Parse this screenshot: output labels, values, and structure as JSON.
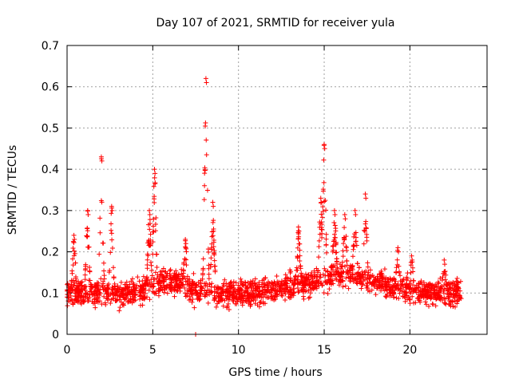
{
  "chart_data": {
    "type": "scatter",
    "title": "Day 107 of 2021, SRMTID for receiver yula",
    "xlabel": "GPS time / hours",
    "ylabel": "SRMTID / TECUs",
    "xlim": [
      0,
      24.5
    ],
    "ylim": [
      0,
      0.7
    ],
    "xticks": [
      0,
      5,
      10,
      15,
      20
    ],
    "yticks": [
      0,
      0.1,
      0.2,
      0.3,
      0.4,
      0.5,
      0.6,
      0.7
    ],
    "xtick_labels": [
      "0",
      "5",
      "10",
      "15",
      "20"
    ],
    "ytick_labels": [
      "0",
      "0.1",
      "0.2",
      "0.3",
      "0.4",
      "0.5",
      "0.6",
      "0.7"
    ],
    "marker": "+",
    "color": "#ff0000",
    "grid": true,
    "x_range_of_data": [
      0,
      23
    ],
    "baseline": 0.1,
    "peaks": [
      {
        "x": 0.4,
        "y": 0.24
      },
      {
        "x": 1.2,
        "y": 0.3
      },
      {
        "x": 2.0,
        "y": 0.43
      },
      {
        "x": 2.6,
        "y": 0.31
      },
      {
        "x": 4.8,
        "y": 0.3
      },
      {
        "x": 5.1,
        "y": 0.4
      },
      {
        "x": 6.9,
        "y": 0.23
      },
      {
        "x": 8.1,
        "y": 0.62
      },
      {
        "x": 8.5,
        "y": 0.32
      },
      {
        "x": 13.5,
        "y": 0.26
      },
      {
        "x": 14.8,
        "y": 0.33
      },
      {
        "x": 15.0,
        "y": 0.46
      },
      {
        "x": 15.6,
        "y": 0.3
      },
      {
        "x": 16.2,
        "y": 0.29
      },
      {
        "x": 16.8,
        "y": 0.3
      },
      {
        "x": 17.4,
        "y": 0.34
      },
      {
        "x": 19.3,
        "y": 0.21
      },
      {
        "x": 20.1,
        "y": 0.19
      },
      {
        "x": 22.0,
        "y": 0.18
      }
    ],
    "outliers": [
      {
        "x": 7.5,
        "y": 0.0
      }
    ]
  }
}
